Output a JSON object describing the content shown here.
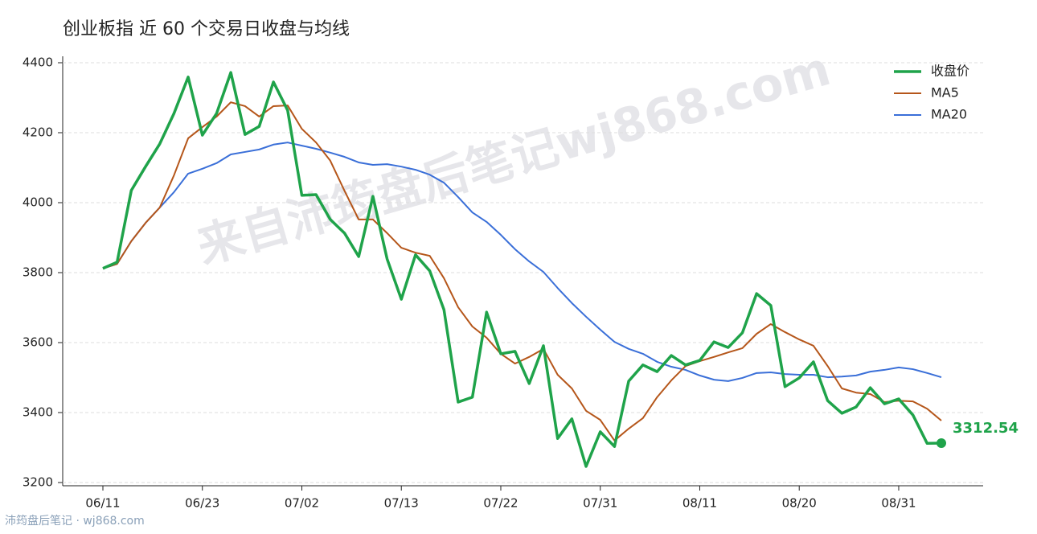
{
  "chart_data": {
    "type": "line",
    "title": "创业板指 近 60 个交易日收盘与均线",
    "watermark": "来自沛筠盘后笔记wj868.com",
    "footer": "沛筠盘后笔记 · wj868.com",
    "categories": [
      "06/11",
      null,
      null,
      null,
      null,
      null,
      null,
      "06/23",
      null,
      null,
      null,
      null,
      null,
      null,
      "07/02",
      null,
      null,
      null,
      null,
      null,
      null,
      "07/13",
      null,
      null,
      null,
      null,
      null,
      null,
      "07/22",
      null,
      null,
      null,
      null,
      null,
      null,
      "07/31",
      null,
      null,
      null,
      null,
      null,
      null,
      "08/11",
      null,
      null,
      null,
      null,
      null,
      null,
      "08/20",
      null,
      null,
      null,
      null,
      null,
      null,
      "08/31",
      null,
      null,
      null
    ],
    "series": [
      {
        "name": "收盘价",
        "color": "#1fa34a",
        "width": 3.5,
        "values": [
          3812,
          3830,
          4035,
          4103,
          4168,
          4255,
          4359,
          4193,
          4255,
          4372,
          4195,
          4218,
          4345,
          4264,
          4021,
          4023,
          3952,
          3913,
          3846,
          4018,
          3839,
          3724,
          3851,
          3805,
          3694,
          3430,
          3444,
          3687,
          3568,
          3575,
          3483,
          3591,
          3326,
          3382,
          3246,
          3345,
          3303,
          3490,
          3536,
          3517,
          3563,
          3536,
          3549,
          3602,
          3586,
          3628,
          3740,
          3706,
          3474,
          3499,
          3545,
          3434,
          3398,
          3416,
          3471,
          3425,
          3439,
          3393,
          3312,
          3312.54
        ]
      },
      {
        "name": "MA5",
        "color": "#b5561a",
        "width": 2,
        "values": [
          3812,
          3825,
          3890,
          3942,
          3986,
          4078,
          4184,
          4216,
          4246,
          4287,
          4276,
          4246,
          4276,
          4278,
          4211,
          4172,
          4120,
          4034,
          3952,
          3952,
          3913,
          3871,
          3857,
          3848,
          3784,
          3701,
          3646,
          3614,
          3568,
          3540,
          3559,
          3582,
          3508,
          3469,
          3405,
          3379,
          3320,
          3354,
          3384,
          3444,
          3492,
          3533,
          3547,
          3559,
          3572,
          3584,
          3625,
          3653,
          3630,
          3609,
          3591,
          3533,
          3469,
          3457,
          3453,
          3430,
          3434,
          3432,
          3411,
          3377
        ]
      },
      {
        "name": "MA20",
        "color": "#3a6fd8",
        "width": 2,
        "values": [
          3812,
          3825,
          3890,
          3942,
          3986,
          4030,
          4083,
          4097,
          4113,
          4138,
          4145,
          4152,
          4166,
          4172,
          4163,
          4154,
          4143,
          4131,
          4115,
          4108,
          4110,
          4103,
          4094,
          4080,
          4057,
          4016,
          3972,
          3945,
          3908,
          3867,
          3832,
          3802,
          3756,
          3713,
          3674,
          3637,
          3602,
          3582,
          3568,
          3545,
          3531,
          3522,
          3506,
          3494,
          3490,
          3499,
          3513,
          3515,
          3510,
          3508,
          3508,
          3501,
          3503,
          3506,
          3517,
          3522,
          3529,
          3524,
          3513,
          3501
        ]
      }
    ],
    "ylim": [
      3200,
      4400
    ],
    "yticks": [
      3200,
      3400,
      3600,
      3800,
      4000,
      4200,
      4400
    ],
    "grid": true,
    "legend": "upper right"
  }
}
